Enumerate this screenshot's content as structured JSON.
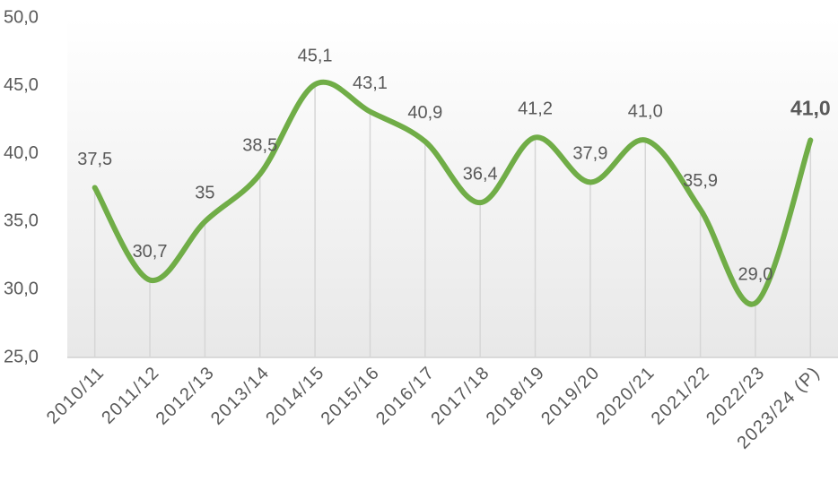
{
  "chart_data": {
    "type": "line",
    "categories": [
      "2010/11",
      "2011/12",
      "2012/13",
      "2013/14",
      "2014/15",
      "2015/16",
      "2016/17",
      "2017/18",
      "2018/19",
      "2019/20",
      "2020/21",
      "2021/22",
      "2022/23",
      "2023/24 (P)"
    ],
    "series": [
      {
        "color": "#70ad47",
        "values": [
          37.5,
          30.7,
          35,
          38.5,
          45.1,
          43.1,
          40.9,
          36.4,
          41.2,
          37.9,
          41.0,
          35.9,
          29.0,
          41.0
        ],
        "value_labels": [
          "37,5",
          "30,7",
          "35",
          "38,5",
          "45,1",
          "43,1",
          "40,9",
          "36,4",
          "41,2",
          "37,9",
          "41,0",
          "35,9",
          "29,0",
          "41,0"
        ]
      }
    ],
    "ylim": [
      25,
      50
    ],
    "yticks": [
      {
        "value": 25,
        "label": "25,0"
      },
      {
        "value": 30,
        "label": "30,0"
      },
      {
        "value": 35,
        "label": "35,0"
      },
      {
        "value": 40,
        "label": "40,0"
      },
      {
        "value": 45,
        "label": "45,0"
      },
      {
        "value": 50,
        "label": "50,0"
      }
    ],
    "smooth": true
  }
}
